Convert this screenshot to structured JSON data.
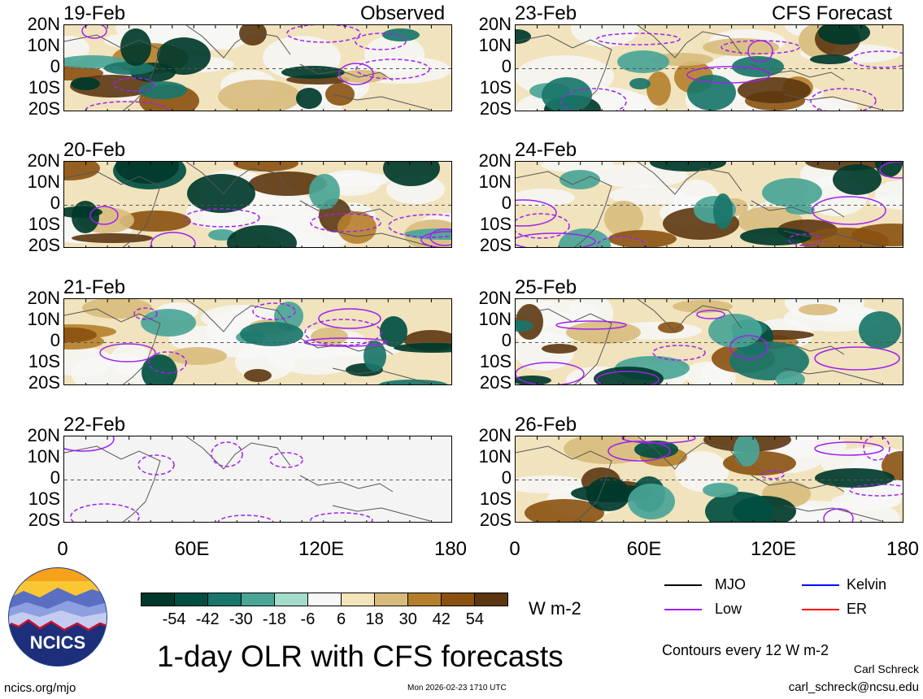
{
  "chart_data": {
    "type": "heatmap",
    "title": "1-day OLR with CFS forecasts",
    "variable": "OLR anomaly",
    "units": "W m-2",
    "lat_ticks": [
      "20N",
      "10N",
      "0",
      "10S",
      "20S"
    ],
    "lon_ticks": [
      "0",
      "60E",
      "120E",
      "180"
    ],
    "lat_range": [
      -20,
      20
    ],
    "lon_range": [
      0,
      180
    ],
    "colorbar": {
      "labels": [
        "-54",
        "-42",
        "-30",
        "-18",
        "-6",
        "6",
        "18",
        "30",
        "42",
        "54"
      ],
      "colors": [
        "#00392b",
        "#014f41",
        "#19766a",
        "#4aa597",
        "#a4dccc",
        "#f7f7f7",
        "#f3e4b9",
        "#d8bb7c",
        "#b57e2b",
        "#8a5111",
        "#5c360f"
      ]
    },
    "left_column_label": "Observed",
    "right_column_label": "CFS Forecast",
    "panels_left": [
      {
        "date": "19-Feb"
      },
      {
        "date": "20-Feb"
      },
      {
        "date": "21-Feb"
      },
      {
        "date": "22-Feb"
      }
    ],
    "panels_right": [
      {
        "date": "23-Feb"
      },
      {
        "date": "24-Feb"
      },
      {
        "date": "25-Feb"
      },
      {
        "date": "26-Feb"
      }
    ],
    "legend": [
      {
        "label": "MJO",
        "color": "#000000"
      },
      {
        "label": "Kelvin",
        "color": "#0000ff"
      },
      {
        "label": "Low",
        "color": "#a020f0"
      },
      {
        "label": "ER",
        "color": "#ff0000"
      }
    ],
    "contour_note": "Contours every 12 W m-2"
  },
  "logo": {
    "text": "NCICS"
  },
  "footer": {
    "url": "ncics.org/mjo",
    "timestamp": "Mon 2026-02-23 1710 UTC",
    "author": "Carl Schreck",
    "email": "carl_schreck@ncsu.edu"
  }
}
